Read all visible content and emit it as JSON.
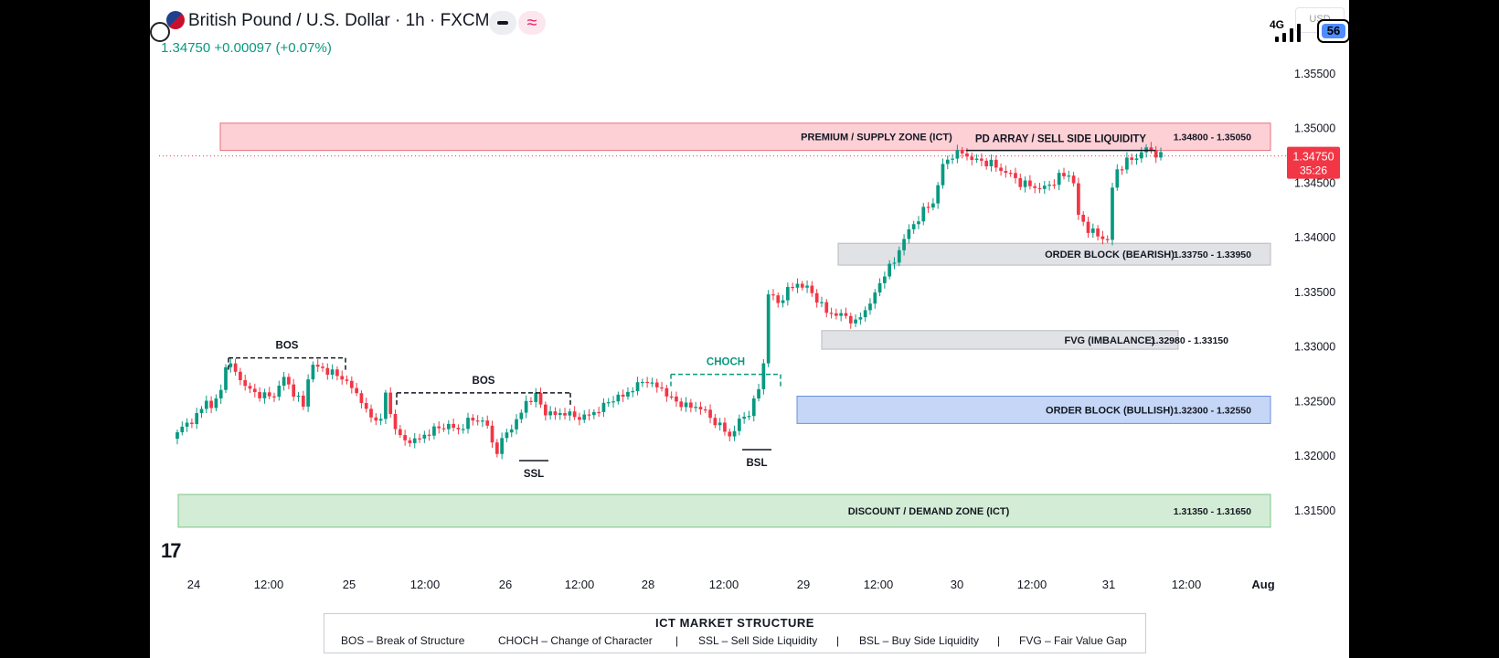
{
  "header": {
    "title": "British Pound / U.S. Dollar · 1h · FXCM",
    "price_line": "1.34750 +0.00097 (+0.07%)"
  },
  "status_bar": {
    "signal": "4G",
    "battery": "56",
    "currency": "USD"
  },
  "icons": [
    "flag-icon",
    "whatsapp-icon",
    "minus-icon",
    "wave-icon",
    "signal-icon",
    "battery-icon",
    "tradingview-logo-icon"
  ],
  "colors": {
    "bull": "#089981",
    "bear": "#f23645",
    "supply_fill": "#fdd0d6",
    "demand_fill": "#d3ecd5",
    "bullish_ob_fill": "#c5d6f6",
    "gray_fill": "#e1e2e6"
  },
  "logo_text": "17",
  "chart_data": {
    "type": "candlestick",
    "ylim": [
      1.3085,
      1.3605
    ],
    "y_ticks": [
      "1.35500",
      "1.35000",
      "1.34500",
      "1.34000",
      "1.33500",
      "1.33000",
      "1.32500",
      "1.32000",
      "1.31500"
    ],
    "x_ticks": [
      "24",
      "12:00",
      "25",
      "12:00",
      "26",
      "12:00",
      "28",
      "12:00",
      "29",
      "12:00",
      "30",
      "12:00",
      "31",
      "12:00",
      "Aug"
    ],
    "current_price": "1.34750",
    "countdown": "35:26",
    "zones": [
      {
        "label": "PREMIUM / SUPPLY ZONE (ICT)",
        "range": "1.34800 - 1.35050",
        "low": 1.348,
        "high": 1.3505,
        "kind": "supply"
      },
      {
        "label": "ORDER BLOCK (BEARISH)",
        "range": "1.33750 - 1.33950",
        "low": 1.3375,
        "high": 1.3395,
        "kind": "gray"
      },
      {
        "label": "FVG (IMBALANCE)",
        "range": "1.32980 - 1.33150",
        "low": 1.3298,
        "high": 1.3315,
        "kind": "gray"
      },
      {
        "label": "ORDER BLOCK (BULLISH)",
        "range": "1.32300 - 1.32550",
        "low": 1.323,
        "high": 1.3255,
        "kind": "bullish"
      },
      {
        "label": "DISCOUNT / DEMAND ZONE (ICT)",
        "range": "1.31350 - 1.31650",
        "low": 1.3135,
        "high": 1.3165,
        "kind": "demand"
      }
    ],
    "annotations": [
      {
        "label": "BOS",
        "price": 1.329,
        "style": "dashed"
      },
      {
        "label": "BOS",
        "price": 1.3258,
        "style": "dashed"
      },
      {
        "label": "CHOCH",
        "price": 1.3275,
        "style": "dashed-green"
      },
      {
        "label": "SSL",
        "price": 1.3196,
        "style": "solid"
      },
      {
        "label": "BSL",
        "price": 1.3206,
        "style": "solid"
      },
      {
        "label": "PD ARRAY / SELL SIDE LIQUIDITY",
        "price": 1.348,
        "style": "solid"
      }
    ],
    "close_path": [
      [
        0,
        1.3222
      ],
      [
        2,
        1.323
      ],
      [
        4,
        1.3236
      ],
      [
        6,
        1.3252
      ],
      [
        7,
        1.3244
      ],
      [
        9,
        1.326
      ],
      [
        10,
        1.3285
      ],
      [
        12,
        1.3278
      ],
      [
        14,
        1.3264
      ],
      [
        16,
        1.3258
      ],
      [
        18,
        1.3255
      ],
      [
        20,
        1.3256
      ],
      [
        22,
        1.3272
      ],
      [
        24,
        1.3258
      ],
      [
        26,
        1.3246
      ],
      [
        27,
        1.3272
      ],
      [
        28,
        1.3283
      ],
      [
        30,
        1.328
      ],
      [
        32,
        1.3276
      ],
      [
        34,
        1.3272
      ],
      [
        35,
        1.3268
      ],
      [
        36,
        1.3262
      ],
      [
        38,
        1.3252
      ],
      [
        39,
        1.324
      ],
      [
        40,
        1.3236
      ],
      [
        42,
        1.3233
      ],
      [
        43,
        1.3258
      ],
      [
        44,
        1.3238
      ],
      [
        45,
        1.3228
      ],
      [
        46,
        1.3216
      ],
      [
        48,
        1.3214
      ],
      [
        50,
        1.3216
      ],
      [
        52,
        1.3222
      ],
      [
        54,
        1.3226
      ],
      [
        56,
        1.3228
      ],
      [
        58,
        1.3224
      ],
      [
        60,
        1.3232
      ],
      [
        62,
        1.3234
      ],
      [
        64,
        1.3228
      ],
      [
        65,
        1.3212
      ],
      [
        66,
        1.3205
      ],
      [
        68,
        1.3222
      ],
      [
        70,
        1.3232
      ],
      [
        71,
        1.324
      ],
      [
        72,
        1.325
      ],
      [
        74,
        1.3255
      ],
      [
        76,
        1.324
      ],
      [
        78,
        1.3238
      ],
      [
        80,
        1.324
      ],
      [
        82,
        1.3236
      ],
      [
        84,
        1.3236
      ],
      [
        86,
        1.324
      ],
      [
        88,
        1.3246
      ],
      [
        90,
        1.3253
      ],
      [
        92,
        1.3255
      ],
      [
        94,
        1.3262
      ],
      [
        96,
        1.3268
      ],
      [
        97,
        1.327
      ],
      [
        98,
        1.3265
      ],
      [
        100,
        1.3262
      ],
      [
        102,
        1.3252
      ],
      [
        104,
        1.3248
      ],
      [
        106,
        1.3245
      ],
      [
        108,
        1.3245
      ],
      [
        110,
        1.3235
      ],
      [
        112,
        1.3228
      ],
      [
        114,
        1.3218
      ],
      [
        116,
        1.3232
      ],
      [
        118,
        1.324
      ],
      [
        119,
        1.325
      ],
      [
        120,
        1.3262
      ],
      [
        121,
        1.3285
      ],
      [
        122,
        1.335
      ],
      [
        124,
        1.334
      ],
      [
        126,
        1.3352
      ],
      [
        128,
        1.3358
      ],
      [
        130,
        1.3354
      ],
      [
        132,
        1.3344
      ],
      [
        134,
        1.3332
      ],
      [
        136,
        1.333
      ],
      [
        138,
        1.3328
      ],
      [
        140,
        1.3322
      ],
      [
        142,
        1.3334
      ],
      [
        144,
        1.3348
      ],
      [
        146,
        1.3368
      ],
      [
        148,
        1.3378
      ],
      [
        150,
        1.34
      ],
      [
        152,
        1.3412
      ],
      [
        154,
        1.3425
      ],
      [
        156,
        1.3432
      ],
      [
        158,
        1.3466
      ],
      [
        160,
        1.3476
      ],
      [
        162,
        1.3478
      ],
      [
        164,
        1.3472
      ],
      [
        166,
        1.347
      ],
      [
        168,
        1.3468
      ],
      [
        170,
        1.3462
      ],
      [
        172,
        1.3458
      ],
      [
        174,
        1.345
      ],
      [
        176,
        1.3448
      ],
      [
        178,
        1.3445
      ],
      [
        180,
        1.3448
      ],
      [
        182,
        1.3456
      ],
      [
        184,
        1.3458
      ],
      [
        185,
        1.345
      ],
      [
        186,
        1.342
      ],
      [
        188,
        1.3408
      ],
      [
        190,
        1.3402
      ],
      [
        192,
        1.3398
      ],
      [
        193,
        1.3445
      ],
      [
        194,
        1.3462
      ],
      [
        196,
        1.347
      ],
      [
        198,
        1.3474
      ],
      [
        199,
        1.3478
      ],
      [
        200,
        1.3482
      ],
      [
        202,
        1.3477
      ],
      [
        203,
        1.3475
      ]
    ]
  },
  "legend": {
    "title": "ICT MARKET STRUCTURE",
    "items": [
      "BOS – Break of Structure",
      "CHOCH – Change of Character",
      "SSL – Sell Side Liquidity",
      "BSL – Buy Side Liquidity",
      "FVG – Fair Value Gap"
    ]
  }
}
